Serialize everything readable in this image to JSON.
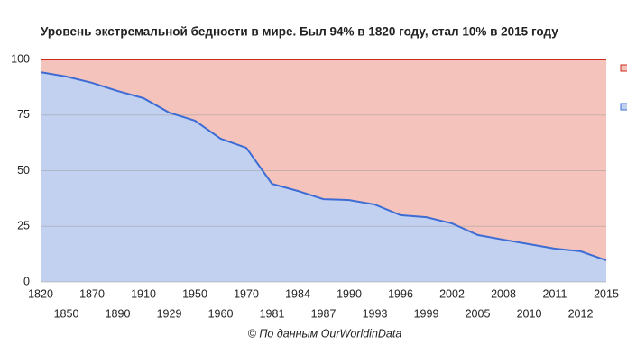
{
  "chart_data": {
    "type": "stacked_area",
    "title": "Уровень экстремальной бедности в мире. Был 94% в 1820 году, стал 10% в 2015 году",
    "source": "© По данным OurWorldinData",
    "categories": [
      "1820",
      "1850",
      "1870",
      "1890",
      "1910",
      "1929",
      "1950",
      "1960",
      "1970",
      "1981",
      "1984",
      "1987",
      "1990",
      "1993",
      "1996",
      "1999",
      "2002",
      "2005",
      "2008",
      "2010",
      "2011",
      "2012",
      "2015"
    ],
    "series": [
      {
        "color": "#3d6cd4",
        "fill": "#c3d1f0",
        "values": [
          94.3,
          92.3,
          89.5,
          85.8,
          82.6,
          76.1,
          72.5,
          64.4,
          60.3,
          44.1,
          40.9,
          37.2,
          36.8,
          34.8,
          30,
          29.1,
          26.3,
          21.1,
          19,
          17,
          15,
          13.8,
          9.7
        ]
      },
      {
        "color": "#cc2a1c",
        "fill": "#f4c3bb",
        "values": [
          5.7,
          7.7,
          10.5,
          14.2,
          17.4,
          23.9,
          27.5,
          35.6,
          39.7,
          55.9,
          59.1,
          62.8,
          63.2,
          65.2,
          70,
          70.9,
          73.7,
          78.9,
          81,
          83,
          85,
          86.2,
          90.3
        ]
      }
    ],
    "ylim": [
      0,
      100
    ],
    "yticks": [
      0,
      25,
      50,
      75,
      100
    ],
    "grid": true
  }
}
